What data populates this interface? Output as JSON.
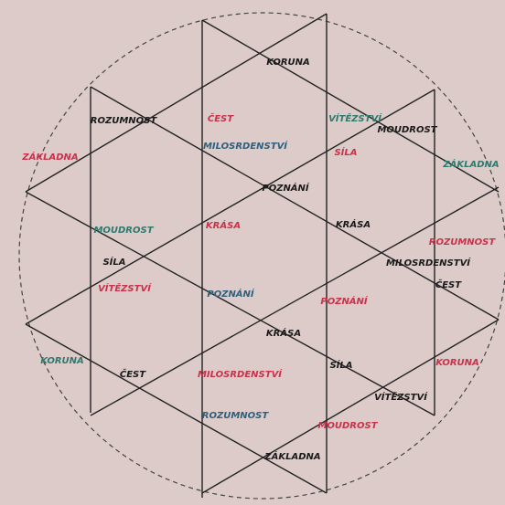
{
  "labels": [
    {
      "text": "KORUNA",
      "color": "#1a1a1a"
    },
    {
      "text": "ČEST",
      "color": "#c8324a"
    },
    {
      "text": "VÍTĚZSTVÍ",
      "color": "#2f7a6e"
    },
    {
      "text": "ROZUMNOST",
      "color": "#1a1a1a"
    },
    {
      "text": "MOUDROST",
      "color": "#1a1a1a"
    },
    {
      "text": "ZÁKLADNA",
      "color": "#c8324a"
    },
    {
      "text": "MILOSRDENSTVÍ",
      "color": "#2f5f7a"
    },
    {
      "text": "SÍLA",
      "color": "#c8324a"
    },
    {
      "text": "ZÁKLADNA",
      "color": "#2f7a6e"
    },
    {
      "text": "POZNÁNÍ",
      "color": "#1a1a1a"
    },
    {
      "text": "MOUDROST",
      "color": "#2f7a6e"
    },
    {
      "text": "KRÁSA",
      "color": "#c8324a"
    },
    {
      "text": "KRÁSA",
      "color": "#1a1a1a"
    },
    {
      "text": "ROZUMNOST",
      "color": "#c8324a"
    },
    {
      "text": "SÍLA",
      "color": "#1a1a1a"
    },
    {
      "text": "MILOSRDENSTVÍ",
      "color": "#1a1a1a"
    },
    {
      "text": "VÍTĚZSTVÍ",
      "color": "#c8324a"
    },
    {
      "text": "POZNÁNÍ",
      "color": "#2f5f7a"
    },
    {
      "text": "ČEST",
      "color": "#1a1a1a"
    },
    {
      "text": "POZNÁNÍ",
      "color": "#c8324a"
    },
    {
      "text": "KRÁSA",
      "color": "#1a1a1a"
    },
    {
      "text": "KORUNA",
      "color": "#2f7a6e"
    },
    {
      "text": "MILOSRDENSTVÍ",
      "color": "#c8324a"
    },
    {
      "text": "SÍLA",
      "color": "#1a1a1a"
    },
    {
      "text": "KORUNA",
      "color": "#c8324a"
    },
    {
      "text": "ČEST",
      "color": "#1a1a1a"
    },
    {
      "text": "VÍTĚZSTVÍ",
      "color": "#1a1a1a"
    },
    {
      "text": "ROZUMNOST",
      "color": "#2f5f7a"
    },
    {
      "text": "MOUDROST",
      "color": "#c8324a"
    },
    {
      "text": "ZÁKLADNA",
      "color": "#1a1a1a"
    }
  ]
}
